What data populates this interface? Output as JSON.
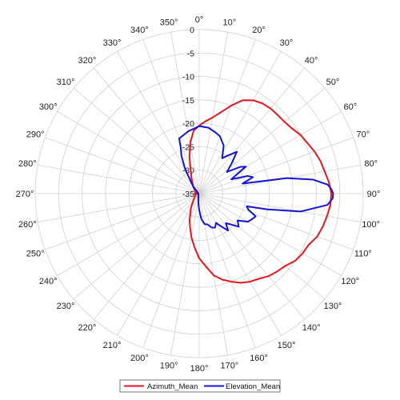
{
  "chart_data": {
    "type": "polar",
    "r_axis": {
      "min": -35,
      "max": 0,
      "ticks": [
        0,
        -5,
        -10,
        -15,
        -20,
        -25,
        -30,
        -35
      ]
    },
    "theta_ticks": [
      "0°",
      "10°",
      "20°",
      "30°",
      "40°",
      "50°",
      "60°",
      "70°",
      "80°",
      "90°",
      "100°",
      "110°",
      "120°",
      "130°",
      "140°",
      "150°",
      "160°",
      "170°",
      "180°",
      "190°",
      "200°",
      "210°",
      "220°",
      "230°",
      "240°",
      "250°",
      "260°",
      "270°",
      "280°",
      "290°",
      "300°",
      "310°",
      "320°",
      "330°",
      "340°",
      "350°"
    ],
    "grid": true,
    "legend_position": "bottom",
    "series": [
      {
        "name": "Azimuth_Mean",
        "color": "#e8141c",
        "points": [
          [
            0,
            -20.5
          ],
          [
            5,
            -19.5
          ],
          [
            10,
            -18.5
          ],
          [
            15,
            -17
          ],
          [
            20,
            -15
          ],
          [
            25,
            -13
          ],
          [
            30,
            -12
          ],
          [
            35,
            -11.5
          ],
          [
            40,
            -11.3
          ],
          [
            45,
            -11.3
          ],
          [
            50,
            -11.2
          ],
          [
            55,
            -10.8
          ],
          [
            60,
            -10
          ],
          [
            65,
            -9.5
          ],
          [
            70,
            -8.8
          ],
          [
            75,
            -8.2
          ],
          [
            80,
            -7.8
          ],
          [
            85,
            -7.2
          ],
          [
            90,
            -6.8
          ],
          [
            95,
            -6.9
          ],
          [
            100,
            -7.3
          ],
          [
            105,
            -7.7
          ],
          [
            110,
            -8.2
          ],
          [
            115,
            -9.2
          ],
          [
            120,
            -9.5
          ],
          [
            125,
            -10
          ],
          [
            130,
            -11
          ],
          [
            135,
            -11.5
          ],
          [
            140,
            -12
          ],
          [
            145,
            -12.8
          ],
          [
            150,
            -13.3
          ],
          [
            155,
            -14
          ],
          [
            160,
            -15
          ],
          [
            165,
            -16
          ],
          [
            170,
            -17.3
          ],
          [
            175,
            -19.5
          ],
          [
            180,
            -21.2
          ],
          [
            185,
            -23.5
          ],
          [
            190,
            -25.5
          ],
          [
            195,
            -27.5
          ],
          [
            200,
            -29
          ],
          [
            210,
            -31.5
          ],
          [
            220,
            -33
          ],
          [
            240,
            -34
          ],
          [
            260,
            -34.3
          ],
          [
            270,
            -34
          ],
          [
            280,
            -34.3
          ],
          [
            300,
            -34
          ],
          [
            320,
            -33
          ],
          [
            335,
            -31
          ],
          [
            345,
            -27
          ],
          [
            350,
            -24
          ],
          [
            355,
            -21.5
          ]
        ]
      },
      {
        "name": "Elevation_Mean",
        "color": "#1414d8",
        "points": [
          [
            340,
            -22.5
          ],
          [
            350,
            -21.5
          ],
          [
            0,
            -20.6
          ],
          [
            8,
            -20.8
          ],
          [
            15,
            -21.5
          ],
          [
            20,
            -22
          ],
          [
            27,
            -23.5
          ],
          [
            33,
            -26
          ],
          [
            37,
            -24.8
          ],
          [
            42,
            -23
          ],
          [
            47,
            -25.5
          ],
          [
            52,
            -27.5
          ],
          [
            57,
            -24.5
          ],
          [
            60,
            -23.5
          ],
          [
            63,
            -26
          ],
          [
            66,
            -27.5
          ],
          [
            70,
            -24
          ],
          [
            73,
            -23
          ],
          [
            77,
            -25.5
          ],
          [
            80,
            -16
          ],
          [
            83,
            -10.5
          ],
          [
            86,
            -7.5
          ],
          [
            88,
            -6.8
          ],
          [
            90,
            -6.4
          ],
          [
            92,
            -6.5
          ],
          [
            95,
            -7.5
          ],
          [
            100,
            -13
          ],
          [
            103,
            -20
          ],
          [
            105,
            -24.5
          ],
          [
            108,
            -24
          ],
          [
            112,
            -22
          ],
          [
            116,
            -22.5
          ],
          [
            120,
            -23
          ],
          [
            125,
            -25
          ],
          [
            130,
            -24
          ],
          [
            134,
            -25.5
          ],
          [
            138,
            -26.5
          ],
          [
            142,
            -25
          ],
          [
            146,
            -26.5
          ],
          [
            150,
            -27.8
          ],
          [
            155,
            -27
          ],
          [
            160,
            -27.3
          ],
          [
            165,
            -28.2
          ],
          [
            170,
            -28.4
          ],
          [
            175,
            -29.5
          ],
          [
            180,
            -31.5
          ],
          [
            185,
            -33
          ],
          [
            190,
            -34
          ],
          [
            200,
            -34.5
          ],
          [
            220,
            -34.7
          ],
          [
            250,
            -34.8
          ],
          [
            270,
            -34.6
          ],
          [
            290,
            -34.8
          ],
          [
            310,
            -34.5
          ],
          [
            320,
            -33
          ],
          [
            330,
            -29
          ],
          [
            335,
            -26
          ],
          [
            338,
            -24.5
          ],
          [
            340,
            -22.5
          ]
        ]
      }
    ]
  }
}
